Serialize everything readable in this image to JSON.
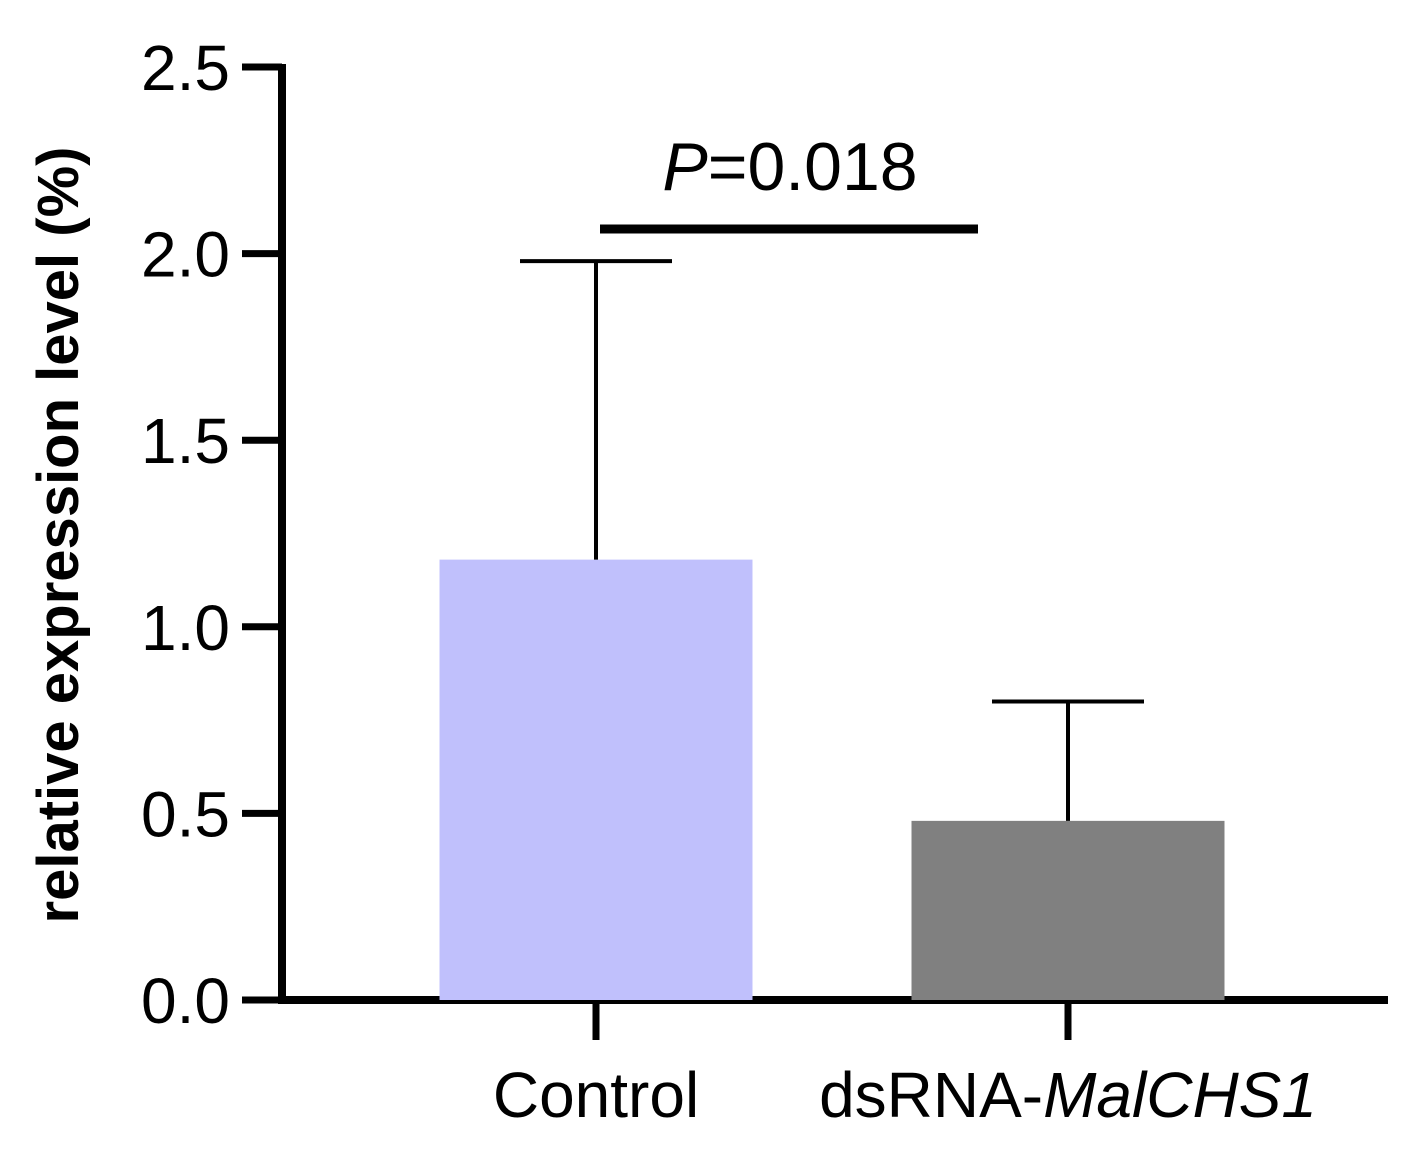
{
  "chart_data": {
    "type": "bar",
    "title": "",
    "xlabel": "",
    "ylabel": "relative expression level (%)",
    "ylim": [
      0,
      2.5
    ],
    "yticks": [
      0.0,
      0.5,
      1.0,
      1.5,
      2.0,
      2.5
    ],
    "ytick_labels": [
      "0.0",
      "0.5",
      "1.0",
      "1.5",
      "2.0",
      "2.5"
    ],
    "grid": false,
    "categories": [
      {
        "prefix": "Control",
        "italic": ""
      },
      {
        "prefix": "dsRNA-",
        "italic": "MalCHS1"
      }
    ],
    "values": [
      1.18,
      0.48
    ],
    "errors": [
      0.8,
      0.32
    ],
    "colors": [
      "#c0c0fc",
      "#808080"
    ],
    "significance": {
      "p_symbol": "P",
      "p_value_text": "=0.018",
      "between": [
        0,
        1
      ]
    }
  }
}
